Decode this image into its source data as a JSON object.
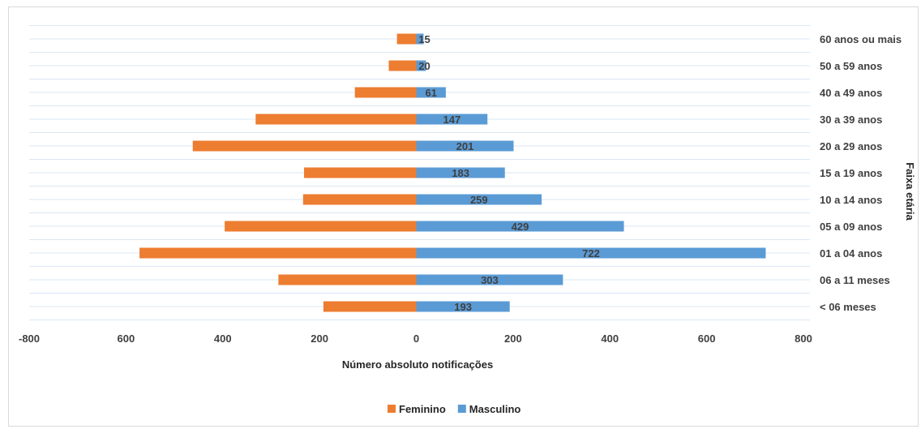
{
  "chart_data": {
    "type": "bar",
    "orientation": "horizontal",
    "title": "",
    "xlabel": "Número absoluto notificações",
    "ylabel": "Faixa etária",
    "xlim": [
      -800,
      800
    ],
    "x_ticks": [
      -800,
      -600,
      -400,
      -200,
      0,
      200,
      400,
      600,
      800
    ],
    "x_tick_labels": [
      "-800",
      "600",
      "400",
      "200",
      "0",
      "200",
      "400",
      "600",
      "800"
    ],
    "categories": [
      "< 06 meses",
      "06 a 11 meses",
      "01 a 04 anos",
      "05 a 09 anos",
      "10 a 14 anos",
      "15 a 19 anos",
      "20 a 29 anos",
      "30 a 39 anos",
      "40 a 49 anos",
      "50 a 59 anos",
      "60 anos ou mais"
    ],
    "series": [
      {
        "name": "Feminino",
        "color": "#ed7d31",
        "values": [
          -192,
          -285,
          -572,
          -396,
          -234,
          -232,
          -462,
          -332,
          -127,
          -57,
          -40
        ]
      },
      {
        "name": "Masculino",
        "color": "#5b9bd5",
        "values": [
          193,
          303,
          722,
          429,
          259,
          183,
          201,
          147,
          61,
          20,
          15
        ]
      }
    ],
    "data_labels": [
      "193",
      "303",
      "722",
      "429",
      "259",
      "183",
      "201",
      "147",
      "61",
      "20",
      "15"
    ],
    "grid": true,
    "legend": "bottom"
  }
}
